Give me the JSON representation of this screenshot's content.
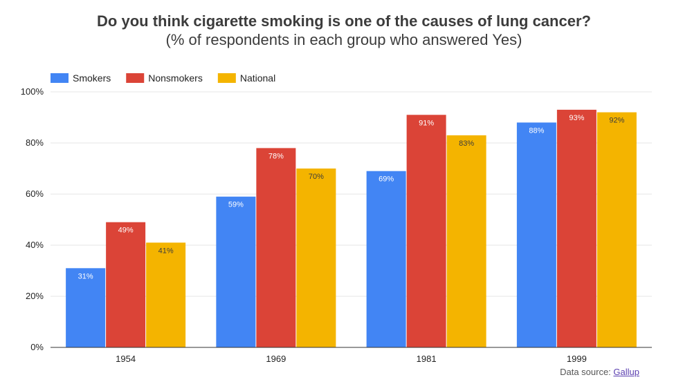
{
  "chart_data": {
    "type": "bar",
    "title": "Do you think cigarette smoking is one of the causes of lung cancer?",
    "subtitle": "(% of respondents in each group who answered Yes)",
    "categories": [
      "1954",
      "1969",
      "1981",
      "1999"
    ],
    "series": [
      {
        "name": "Smokers",
        "color": "#4285f4",
        "label_color": "#ffffff",
        "values": [
          31,
          59,
          69,
          88
        ],
        "labels": [
          "31%",
          "59%",
          "69%",
          "88%"
        ]
      },
      {
        "name": "Nonsmokers",
        "color": "#db4437",
        "label_color": "#ffffff",
        "values": [
          49,
          78,
          91,
          93
        ],
        "labels": [
          "49%",
          "78%",
          "91%",
          "93%"
        ]
      },
      {
        "name": "National",
        "color": "#f4b400",
        "label_color": "#3c3c3c",
        "values": [
          41,
          70,
          83,
          92
        ],
        "labels": [
          "41%",
          "70%",
          "83%",
          "92%"
        ]
      }
    ],
    "ylim": [
      0,
      100
    ],
    "yticks": [
      0,
      20,
      40,
      60,
      80,
      100
    ],
    "ytick_labels": [
      "0%",
      "20%",
      "40%",
      "60%",
      "80%",
      "100%"
    ],
    "xlabel": "",
    "ylabel": "",
    "legend_position": "top-left",
    "grid": true
  },
  "source": {
    "prefix": "Data source: ",
    "link_text": "Gallup"
  }
}
